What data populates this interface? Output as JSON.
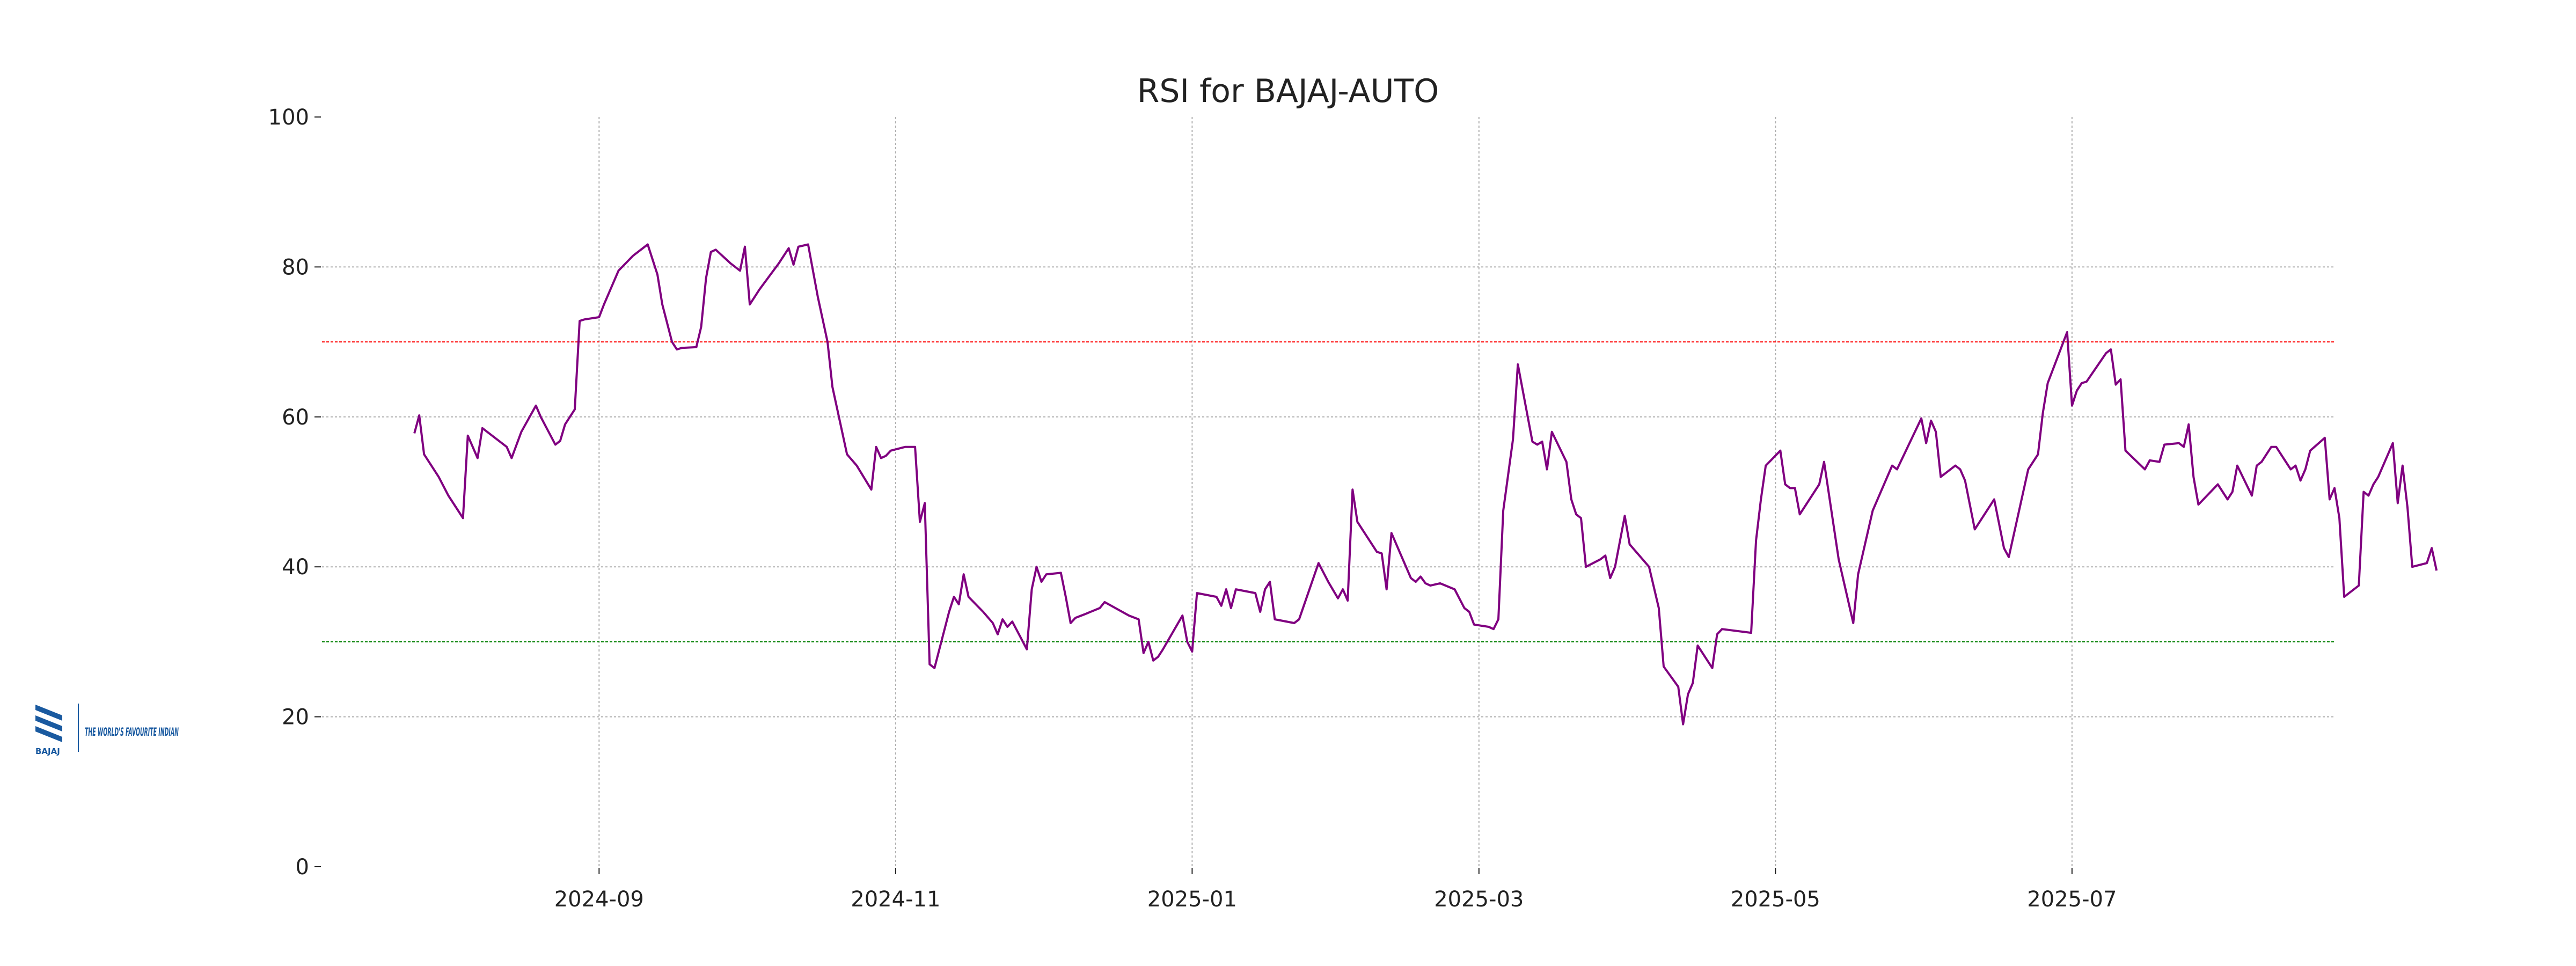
{
  "chart_data": {
    "type": "line",
    "title": "RSI for BAJAJ-AUTO",
    "xlabel": "",
    "ylabel": "",
    "ylim": [
      0,
      100
    ],
    "xlim": [
      "2024-07-06",
      "2025-08-24"
    ],
    "y_ticks": [
      0,
      20,
      40,
      60,
      80,
      100
    ],
    "x_ticks": [
      {
        "date": "2024-09-01",
        "label": "2024-09"
      },
      {
        "date": "2024-11-01",
        "label": "2024-11"
      },
      {
        "date": "2025-01-01",
        "label": "2025-01"
      },
      {
        "date": "2025-03-01",
        "label": "2025-03"
      },
      {
        "date": "2025-05-01",
        "label": "2025-05"
      },
      {
        "date": "2025-07-01",
        "label": "2025-07"
      }
    ],
    "grid": true,
    "reference_lines": [
      {
        "y": 70,
        "color": "#ff0000"
      },
      {
        "y": 30,
        "color": "#008000"
      }
    ],
    "series": [
      {
        "color": "#800080",
        "points": [
          [
            "2024-07-25",
            57.8
          ],
          [
            "2024-07-26",
            60.2
          ],
          [
            "2024-07-27",
            55
          ],
          [
            "2024-07-30",
            52
          ],
          [
            "2024-08-01",
            49.5
          ],
          [
            "2024-08-04",
            46.5
          ],
          [
            "2024-08-05",
            57.5
          ],
          [
            "2024-08-07",
            54.5
          ],
          [
            "2024-08-08",
            58.5
          ],
          [
            "2024-08-12",
            56.5
          ],
          [
            "2024-08-13",
            56
          ],
          [
            "2024-08-14",
            54.5
          ],
          [
            "2024-08-16",
            58
          ],
          [
            "2024-08-19",
            61.5
          ],
          [
            "2024-08-20",
            60
          ],
          [
            "2024-08-23",
            56.3
          ],
          [
            "2024-08-24",
            56.8
          ],
          [
            "2024-08-25",
            59
          ],
          [
            "2024-08-27",
            61
          ],
          [
            "2024-08-28",
            72.8
          ],
          [
            "2024-08-29",
            73
          ],
          [
            "2024-09-01",
            73.3
          ],
          [
            "2024-09-02",
            75
          ],
          [
            "2024-09-05",
            79.5
          ],
          [
            "2024-09-08",
            81.5
          ],
          [
            "2024-09-10",
            82.5
          ],
          [
            "2024-09-11",
            83
          ],
          [
            "2024-09-13",
            79
          ],
          [
            "2024-09-14",
            75
          ],
          [
            "2024-09-16",
            70
          ],
          [
            "2024-09-17",
            69
          ],
          [
            "2024-09-18",
            69.2
          ],
          [
            "2024-09-21",
            69.3
          ],
          [
            "2024-09-22",
            72
          ],
          [
            "2024-09-23",
            78.5
          ],
          [
            "2024-09-24",
            82
          ],
          [
            "2024-09-25",
            82.3
          ],
          [
            "2024-09-28",
            80.5
          ],
          [
            "2024-09-30",
            79.5
          ],
          [
            "2024-10-01",
            82.7
          ],
          [
            "2024-10-02",
            75
          ],
          [
            "2024-10-04",
            77
          ],
          [
            "2024-10-08",
            80.5
          ],
          [
            "2024-10-10",
            82.5
          ],
          [
            "2024-10-11",
            80.3
          ],
          [
            "2024-10-12",
            82.7
          ],
          [
            "2024-10-14",
            83
          ],
          [
            "2024-10-16",
            76
          ],
          [
            "2024-10-18",
            70
          ],
          [
            "2024-10-19",
            64
          ],
          [
            "2024-10-22",
            55
          ],
          [
            "2024-10-24",
            53.5
          ],
          [
            "2024-10-27",
            50.3
          ],
          [
            "2024-10-28",
            56
          ],
          [
            "2024-10-29",
            54.5
          ],
          [
            "2024-10-30",
            54.8
          ],
          [
            "2024-10-31",
            55.5
          ],
          [
            "2024-11-03",
            56
          ],
          [
            "2024-11-05",
            56
          ],
          [
            "2024-11-06",
            46
          ],
          [
            "2024-11-07",
            48.5
          ],
          [
            "2024-11-08",
            27
          ],
          [
            "2024-11-09",
            26.5
          ],
          [
            "2024-11-12",
            34
          ],
          [
            "2024-11-13",
            36
          ],
          [
            "2024-11-14",
            35
          ],
          [
            "2024-11-15",
            39
          ],
          [
            "2024-11-16",
            36
          ],
          [
            "2024-11-19",
            34
          ],
          [
            "2024-11-21",
            32.5
          ],
          [
            "2024-11-22",
            31
          ],
          [
            "2024-11-23",
            33
          ],
          [
            "2024-11-24",
            32
          ],
          [
            "2024-11-25",
            32.7
          ],
          [
            "2024-11-28",
            29
          ],
          [
            "2024-11-29",
            37
          ],
          [
            "2024-11-30",
            40
          ],
          [
            "2024-12-01",
            38
          ],
          [
            "2024-12-02",
            39
          ],
          [
            "2024-12-05",
            39.2
          ],
          [
            "2024-12-06",
            36
          ],
          [
            "2024-12-07",
            32.5
          ],
          [
            "2024-12-08",
            33.2
          ],
          [
            "2024-12-10",
            33.7
          ],
          [
            "2024-12-13",
            34.5
          ],
          [
            "2024-12-14",
            35.3
          ],
          [
            "2024-12-19",
            33.5
          ],
          [
            "2024-12-21",
            33
          ],
          [
            "2024-12-22",
            28.5
          ],
          [
            "2024-12-23",
            30
          ],
          [
            "2024-12-24",
            27.5
          ],
          [
            "2024-12-25",
            28
          ],
          [
            "2024-12-26",
            29
          ],
          [
            "2024-12-30",
            33.5
          ],
          [
            "2024-12-31",
            30
          ],
          [
            "2025-01-01",
            28.7
          ],
          [
            "2025-01-02",
            36.5
          ],
          [
            "2025-01-06",
            36
          ],
          [
            "2025-01-07",
            34.8
          ],
          [
            "2025-01-08",
            37
          ],
          [
            "2025-01-09",
            34.5
          ],
          [
            "2025-01-10",
            37
          ],
          [
            "2025-01-14",
            36.5
          ],
          [
            "2025-01-15",
            34
          ],
          [
            "2025-01-16",
            37
          ],
          [
            "2025-01-17",
            38
          ],
          [
            "2025-01-18",
            33
          ],
          [
            "2025-01-22",
            32.5
          ],
          [
            "2025-01-23",
            33
          ],
          [
            "2025-01-27",
            40.5
          ],
          [
            "2025-01-29",
            38
          ],
          [
            "2025-01-31",
            35.8
          ],
          [
            "2025-02-01",
            37
          ],
          [
            "2025-02-02",
            35.5
          ],
          [
            "2025-02-03",
            50.3
          ],
          [
            "2025-02-04",
            46
          ],
          [
            "2025-02-08",
            42
          ],
          [
            "2025-02-09",
            41.8
          ],
          [
            "2025-02-10",
            37
          ],
          [
            "2025-02-11",
            44.5
          ],
          [
            "2025-02-15",
            38.5
          ],
          [
            "2025-02-16",
            38
          ],
          [
            "2025-02-17",
            38.7
          ],
          [
            "2025-02-18",
            37.8
          ],
          [
            "2025-02-19",
            37.5
          ],
          [
            "2025-02-21",
            37.8
          ],
          [
            "2025-02-24",
            37
          ],
          [
            "2025-02-26",
            34.5
          ],
          [
            "2025-02-27",
            34
          ],
          [
            "2025-02-28",
            32.3
          ],
          [
            "2025-03-03",
            32
          ],
          [
            "2025-03-04",
            31.7
          ],
          [
            "2025-03-05",
            33
          ],
          [
            "2025-03-06",
            47.5
          ],
          [
            "2025-03-08",
            57
          ],
          [
            "2025-03-09",
            67
          ],
          [
            "2025-03-12",
            56.7
          ],
          [
            "2025-03-13",
            56.3
          ],
          [
            "2025-03-14",
            56.7
          ],
          [
            "2025-03-15",
            53
          ],
          [
            "2025-03-16",
            58
          ],
          [
            "2025-03-19",
            54
          ],
          [
            "2025-03-20",
            49
          ],
          [
            "2025-03-21",
            47
          ],
          [
            "2025-03-22",
            46.5
          ],
          [
            "2025-03-23",
            40
          ],
          [
            "2025-03-26",
            41
          ],
          [
            "2025-03-27",
            41.5
          ],
          [
            "2025-03-28",
            38.5
          ],
          [
            "2025-03-29",
            40
          ],
          [
            "2025-03-31",
            46.8
          ],
          [
            "2025-04-01",
            43
          ],
          [
            "2025-04-05",
            40
          ],
          [
            "2025-04-07",
            34.5
          ],
          [
            "2025-04-08",
            26.7
          ],
          [
            "2025-04-11",
            24
          ],
          [
            "2025-04-12",
            19
          ],
          [
            "2025-04-13",
            23
          ],
          [
            "2025-04-14",
            24.5
          ],
          [
            "2025-04-15",
            29.5
          ],
          [
            "2025-04-18",
            26.5
          ],
          [
            "2025-04-19",
            31
          ],
          [
            "2025-04-20",
            31.7
          ],
          [
            "2025-04-26",
            31.2
          ],
          [
            "2025-04-27",
            43.5
          ],
          [
            "2025-04-28",
            49
          ],
          [
            "2025-04-29",
            53.5
          ],
          [
            "2025-05-02",
            55.5
          ],
          [
            "2025-05-03",
            51
          ],
          [
            "2025-05-04",
            50.5
          ],
          [
            "2025-05-05",
            50.5
          ],
          [
            "2025-05-06",
            47
          ],
          [
            "2025-05-10",
            51
          ],
          [
            "2025-05-11",
            54
          ],
          [
            "2025-05-14",
            41
          ],
          [
            "2025-05-17",
            32.5
          ],
          [
            "2025-05-18",
            39
          ],
          [
            "2025-05-21",
            47.5
          ],
          [
            "2025-05-25",
            53.5
          ],
          [
            "2025-05-26",
            53
          ],
          [
            "2025-05-31",
            59.8
          ],
          [
            "2025-06-01",
            56.5
          ],
          [
            "2025-06-02",
            59.5
          ],
          [
            "2025-06-03",
            58
          ],
          [
            "2025-06-04",
            52
          ],
          [
            "2025-06-07",
            53.5
          ],
          [
            "2025-06-08",
            53
          ],
          [
            "2025-06-09",
            51.5
          ],
          [
            "2025-06-11",
            45
          ],
          [
            "2025-06-15",
            49
          ],
          [
            "2025-06-17",
            42.5
          ],
          [
            "2025-06-18",
            41.3
          ],
          [
            "2025-06-22",
            53
          ],
          [
            "2025-06-24",
            55
          ],
          [
            "2025-06-25",
            60.5
          ],
          [
            "2025-06-26",
            64.5
          ],
          [
            "2025-06-30",
            71.3
          ],
          [
            "2025-07-01",
            61.5
          ],
          [
            "2025-07-02",
            63.5
          ],
          [
            "2025-07-03",
            64.5
          ],
          [
            "2025-07-04",
            64.7
          ],
          [
            "2025-07-08",
            68.5
          ],
          [
            "2025-07-09",
            69
          ],
          [
            "2025-07-10",
            64.3
          ],
          [
            "2025-07-11",
            65
          ],
          [
            "2025-07-12",
            55.5
          ],
          [
            "2025-07-16",
            53
          ],
          [
            "2025-07-17",
            54.2
          ],
          [
            "2025-07-19",
            54
          ],
          [
            "2025-07-20",
            56.3
          ],
          [
            "2025-07-23",
            56.5
          ],
          [
            "2025-07-24",
            56
          ],
          [
            "2025-07-25",
            59
          ],
          [
            "2025-07-26",
            52
          ],
          [
            "2025-07-27",
            48.3
          ],
          [
            "2025-07-31",
            51
          ],
          [
            "2025-08-02",
            49
          ],
          [
            "2025-08-03",
            50
          ],
          [
            "2025-08-04",
            53.5
          ],
          [
            "2025-08-07",
            49.5
          ],
          [
            "2025-08-08",
            53.5
          ],
          [
            "2025-08-09",
            54
          ],
          [
            "2025-08-11",
            56
          ],
          [
            "2025-08-12",
            56
          ],
          [
            "2025-08-14",
            54
          ],
          [
            "2025-08-15",
            53
          ],
          [
            "2025-08-16",
            53.5
          ],
          [
            "2025-08-17",
            51.5
          ],
          [
            "2025-08-18",
            53
          ],
          [
            "2025-08-19",
            55.5
          ],
          [
            "2025-08-22",
            57.2
          ],
          [
            "2025-08-23",
            49
          ],
          [
            "2025-08-24",
            50.5
          ],
          [
            "2025-08-25",
            46.5
          ],
          [
            "2025-08-26",
            36
          ],
          [
            "2025-08-29",
            37.5
          ],
          [
            "2025-08-30",
            50
          ],
          [
            "2025-08-31",
            49.5
          ],
          [
            "2025-09-01",
            51
          ],
          [
            "2025-09-02",
            52
          ],
          [
            "2025-09-05",
            56.5
          ],
          [
            "2025-09-06",
            48.5
          ],
          [
            "2025-09-07",
            53.5
          ],
          [
            "2025-09-08",
            48
          ],
          [
            "2025-09-09",
            40
          ],
          [
            "2025-09-12",
            40.5
          ],
          [
            "2025-09-13",
            42.5
          ],
          [
            "2025-09-14",
            39.5
          ]
        ]
      }
    ]
  },
  "logo": {
    "brand_text": "BAJAJ",
    "tagline": "THE WORLD'S FAVOURITE INDIAN",
    "color": "#1a5aa0"
  }
}
